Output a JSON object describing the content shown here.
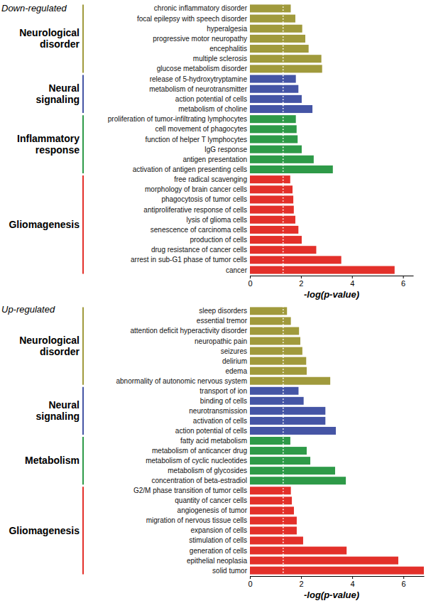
{
  "chart_data": [
    {
      "type": "bar",
      "orientation": "horizontal",
      "title": "Down-regulated",
      "x_label": "-log(p-value)",
      "xlim": [
        0,
        6.4
      ],
      "xticks": [
        0,
        2,
        4,
        6
      ],
      "reference_line": 1.3,
      "series": [
        {
          "name": "Neurological disorder",
          "color": "#a09a3c",
          "categories": [
            "chronic inflammatory disorder",
            "focal epilepsy with speech disorder",
            "hyperalgesia",
            "progressive motor neuropathy",
            "encephalitis",
            "multiple sclerosis",
            "glucose metabolism disorder"
          ],
          "values": [
            1.6,
            1.78,
            2.05,
            2.17,
            2.3,
            2.8,
            2.83
          ]
        },
        {
          "name": "Neural signaling",
          "color": "#4555a5",
          "categories": [
            "release of 5-hydroxytryptamine",
            "metabolism of neurotransmitter",
            "action potential of cells",
            "metabolism of choline"
          ],
          "values": [
            1.8,
            1.9,
            2.03,
            2.45
          ]
        },
        {
          "name": "Inflammatory response",
          "color": "#2e9a48",
          "categories": [
            "proliferation of tumor-infiltrating lymphocytes",
            "cell movement of phagocytes",
            "function of helper T lymphocytes",
            "IgG response",
            "antigen presentation",
            "activation of antigen presenting cells"
          ],
          "values": [
            1.8,
            1.83,
            1.87,
            2.03,
            2.5,
            3.25
          ]
        },
        {
          "name": "Gliomagenesis",
          "color": "#e3302a",
          "categories": [
            "free radical scavenging",
            "morphology of brain cancer cells",
            "phagocytosis of tumor cells",
            "antiproliferative response of cells",
            "lysis of glioma cells",
            "senescence of carcinoma cells",
            "production of cells",
            "drug resistance of cancer cells",
            "arrest in sub-G1 phase of tumor cells",
            "cancer"
          ],
          "values": [
            1.58,
            1.67,
            1.7,
            1.72,
            1.78,
            1.9,
            2.03,
            2.6,
            3.58,
            5.67
          ]
        }
      ]
    },
    {
      "type": "bar",
      "orientation": "horizontal",
      "title": "Up-regulated",
      "x_label": "-log(p-value)",
      "xlim": [
        0,
        6.8
      ],
      "xticks": [
        0,
        2,
        4,
        6
      ],
      "reference_line": 1.3,
      "series": [
        {
          "name": "Neurological disorder",
          "color": "#a09a3c",
          "categories": [
            "sleep disorders",
            "essential tremor",
            "attention deficit hyperactivity disorder",
            "neuropathic pain",
            "seizures",
            "delirium",
            "edema",
            "abnormality of autonomic nervous system"
          ],
          "values": [
            1.45,
            1.6,
            1.92,
            1.97,
            2.05,
            2.2,
            2.22,
            3.14
          ]
        },
        {
          "name": "Neural signaling",
          "color": "#4555a5",
          "categories": [
            "transport of ion",
            "binding of cells",
            "neurotransmission",
            "activation of cells",
            "action potential of cells"
          ],
          "values": [
            1.9,
            2.1,
            2.95,
            2.95,
            3.36
          ]
        },
        {
          "name": "Metabolism",
          "color": "#2e9a48",
          "categories": [
            "fatty acid metabolism",
            "metabolism of anticancer drug",
            "metabolism of cyclic nucleotides",
            "metabolism of glycosides",
            "concentration of beta-estradiol"
          ],
          "values": [
            1.58,
            2.22,
            2.36,
            3.33,
            3.75
          ]
        },
        {
          "name": "Gliomagenesis",
          "color": "#e3302a",
          "categories": [
            "G2/M phase transition of tumor cells",
            "quantity of cancer cells",
            "angiogenesis of tumor",
            "migration of nervous tissue cells",
            "expansion of cells",
            "stimulation of cells",
            "generation of cells",
            "epithelial neoplasia",
            "solid tumor"
          ],
          "values": [
            1.6,
            1.64,
            1.72,
            1.83,
            1.83,
            2.08,
            3.78,
            5.8,
            6.8
          ]
        }
      ]
    }
  ]
}
